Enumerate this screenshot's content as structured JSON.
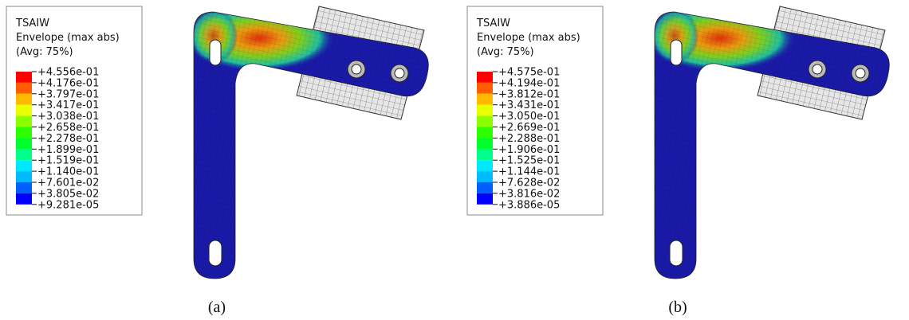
{
  "panels": [
    {
      "legend": {
        "title": "TSAIW",
        "subtitle": "Envelope (max abs)",
        "averaging": "(Avg: 75%)",
        "labels": [
          "+4.556e-01",
          "+4.176e-01",
          "+3.797e-01",
          "+3.417e-01",
          "+3.038e-01",
          "+2.658e-01",
          "+2.278e-01",
          "+1.899e-01",
          "+1.519e-01",
          "+1.140e-01",
          "+7.601e-02",
          "+3.805e-02",
          "+9.281e-05"
        ]
      },
      "caption": "(a)"
    },
    {
      "legend": {
        "title": "TSAIW",
        "subtitle": "Envelope (max abs)",
        "averaging": "(Avg: 75%)",
        "labels": [
          "+4.575e-01",
          "+4.194e-01",
          "+3.812e-01",
          "+3.431e-01",
          "+3.050e-01",
          "+2.669e-01",
          "+2.288e-01",
          "+1.906e-01",
          "+1.525e-01",
          "+1.144e-01",
          "+7.628e-02",
          "+3.816e-02",
          "+3.886e-05"
        ]
      },
      "caption": "(b)"
    }
  ]
}
